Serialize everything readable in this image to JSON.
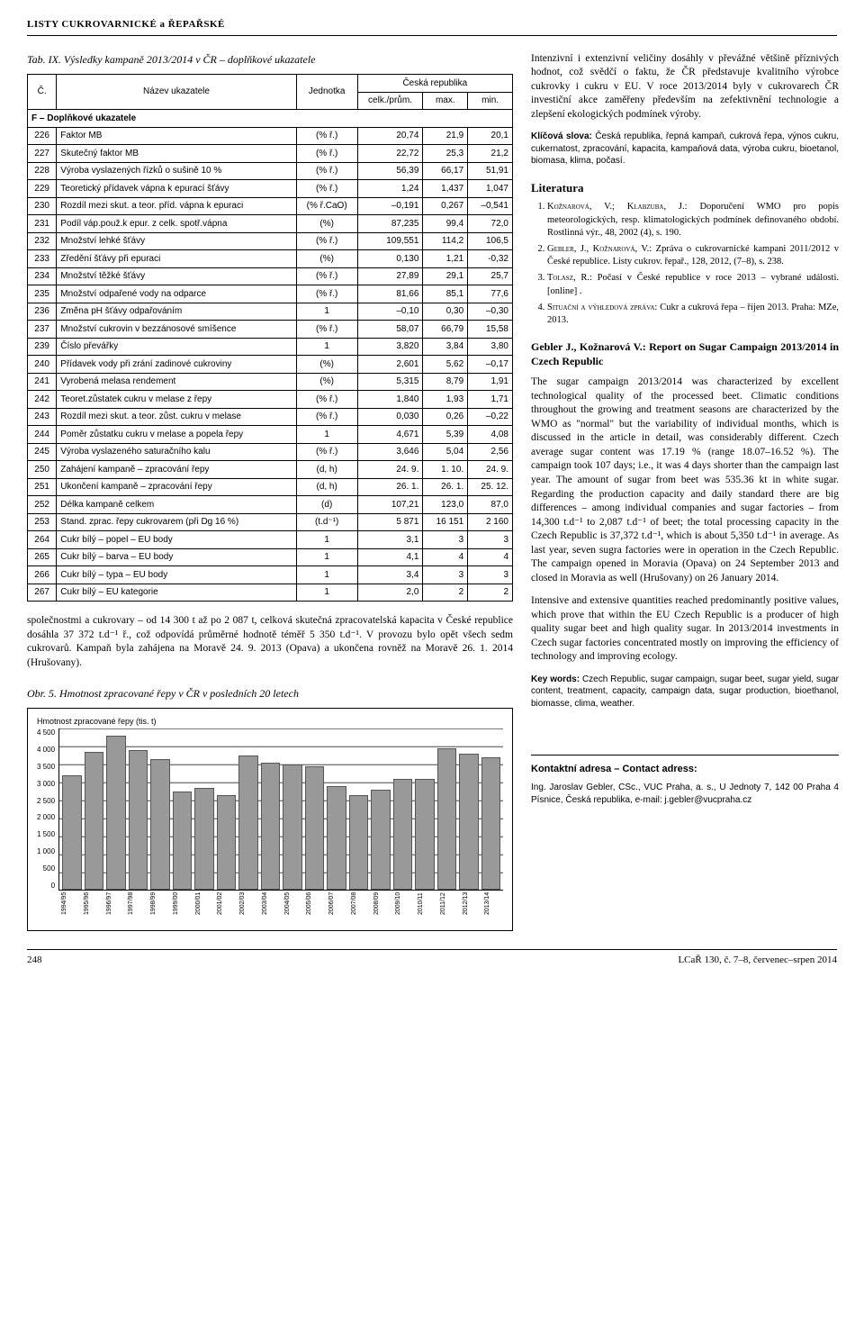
{
  "header": "LISTY CUKROVARNICKÉ a ŘEPAŘSKÉ",
  "tableCaption": "Tab. IX. Výsledky kampaně 2013/2014 v ČR – doplňkové ukazatele",
  "tableHead": {
    "c": "Č.",
    "name": "Název ukazatele",
    "unit": "Jednotka",
    "group": "Česká republika",
    "sub": [
      "celk./prům.",
      "max.",
      "min."
    ]
  },
  "sectionLabel": "F – Doplňkové ukazatele",
  "rows": [
    {
      "n": "226",
      "name": "Faktor MB",
      "u": "(% ř.)",
      "v": [
        "20,74",
        "21,9",
        "20,1"
      ]
    },
    {
      "n": "227",
      "name": "Skutečný faktor MB",
      "u": "(% ř.)",
      "v": [
        "22,72",
        "25,3",
        "21,2"
      ]
    },
    {
      "n": "228",
      "name": "Výroba vyslazených řízků o sušině 10 %",
      "u": "(% ř.)",
      "v": [
        "56,39",
        "66,17",
        "51,91"
      ]
    },
    {
      "n": "229",
      "name": "Teoretický přídavek vápna k epurací šťávy",
      "u": "(% ř.)",
      "v": [
        "1,24",
        "1,437",
        "1,047"
      ]
    },
    {
      "n": "230",
      "name": "Rozdíl mezi skut. a teor. příd. vápna k epuraci",
      "u": "(% ř.CaO)",
      "v": [
        "–0,191",
        "0,267",
        "–0,541"
      ]
    },
    {
      "n": "231",
      "name": "Podíl váp.použ.k epur. z celk. spotř.vápna",
      "u": "(%)",
      "v": [
        "87,235",
        "99,4",
        "72,0"
      ]
    },
    {
      "n": "232",
      "name": "Množství lehké šťávy",
      "u": "(% ř.)",
      "v": [
        "109,551",
        "114,2",
        "106,5"
      ]
    },
    {
      "n": "233",
      "name": "Zředění šťávy při epuraci",
      "u": "(%)",
      "v": [
        "0,130",
        "1,21",
        "-0,32"
      ]
    },
    {
      "n": "234",
      "name": "Množství těžké šťávy",
      "u": "(% ř.)",
      "v": [
        "27,89",
        "29,1",
        "25,7"
      ]
    },
    {
      "n": "235",
      "name": "Množství odpařené vody na odparce",
      "u": "(% ř.)",
      "v": [
        "81,66",
        "85,1",
        "77,6"
      ]
    },
    {
      "n": "236",
      "name": "Změna pH šťávy odpařováním",
      "u": "1",
      "v": [
        "–0,10",
        "0,30",
        "–0,30"
      ]
    },
    {
      "n": "237",
      "name": "Množství cukrovin v bezzánosové smíšence",
      "u": "(% ř.)",
      "v": [
        "58,07",
        "66,79",
        "15,58"
      ]
    },
    {
      "n": "239",
      "name": "Číslo převářky",
      "u": "1",
      "v": [
        "3,820",
        "3,84",
        "3,80"
      ]
    },
    {
      "n": "240",
      "name": "Přídavek vody při zrání zadinové cukroviny",
      "u": "(%)",
      "v": [
        "2,601",
        "5,62",
        "–0,17"
      ]
    },
    {
      "n": "241",
      "name": "Vyrobená melasa rendement",
      "u": "(%)",
      "v": [
        "5,315",
        "8,79",
        "1,91"
      ]
    },
    {
      "n": "242",
      "name": "Teoret.zůstatek cukru v melase z řepy",
      "u": "(% ř.)",
      "v": [
        "1,840",
        "1,93",
        "1,71"
      ]
    },
    {
      "n": "243",
      "name": "Rozdíl mezi skut. a teor. zůst. cukru v melase",
      "u": "(% ř.)",
      "v": [
        "0,030",
        "0,26",
        "–0,22"
      ]
    },
    {
      "n": "244",
      "name": "Poměr zůstatku cukru v melase a popela řepy",
      "u": "1",
      "v": [
        "4,671",
        "5,39",
        "4,08"
      ]
    },
    {
      "n": "245",
      "name": "Výroba vyslazeného saturačního kalu",
      "u": "(% ř.)",
      "v": [
        "3,646",
        "5,04",
        "2,56"
      ]
    },
    {
      "n": "250",
      "name": "Zahájení kampaně – zpracování řepy",
      "u": "(d, h)",
      "v": [
        "24. 9.",
        "1. 10.",
        "24. 9."
      ]
    },
    {
      "n": "251",
      "name": "Ukončení kampaně – zpracování řepy",
      "u": "(d, h)",
      "v": [
        "26. 1.",
        "26. 1.",
        "25. 12."
      ]
    },
    {
      "n": "252",
      "name": "Délka kampaně celkem",
      "u": "(d)",
      "v": [
        "107,21",
        "123,0",
        "87,0"
      ]
    },
    {
      "n": "253",
      "name": "Stand. zprac. řepy cukrovarem (při Dg 16 %)",
      "u": "(t.d⁻¹)",
      "v": [
        "5 871",
        "16 151",
        "2 160"
      ]
    },
    {
      "n": "264",
      "name": "Cukr bílý – popel – EU body",
      "u": "1",
      "v": [
        "3,1",
        "3",
        "3"
      ]
    },
    {
      "n": "265",
      "name": "Cukr bílý – barva – EU body",
      "u": "1",
      "v": [
        "4,1",
        "4",
        "4"
      ]
    },
    {
      "n": "266",
      "name": "Cukr bílý – typa – EU body",
      "u": "1",
      "v": [
        "3,4",
        "3",
        "3"
      ]
    },
    {
      "n": "267",
      "name": "Cukr bílý – EU kategorie",
      "u": "1",
      "v": [
        "2,0",
        "2",
        "2"
      ]
    }
  ],
  "belowTable": "společnostmi a cukrovary – od 14 300 t až po 2 087 t, celková skutečná zpracovatelská kapacita v České republice dosáhla 37 372 t.d⁻¹ ř., což odpovídá průměrné hodnotě téměř 5 350 t.d⁻¹. V provozu bylo opět všech sedm cukrovarů. Kampaň byla zahájena na Moravě 24. 9. 2013 (Opava) a ukončena rovněž na Moravě 26. 1. 2014 (Hrušovany).",
  "chartCaption": "Obr. 5. Hmotnost zpracované řepy v ČR v posledních 20 letech",
  "chart": {
    "ylabel": "Hmotnost zpracované řepy (tis. t)",
    "ymax": 4500,
    "ytick": 500,
    "ylabels": [
      "4 500",
      "4 000",
      "3 500",
      "3 000",
      "2 500",
      "2 000",
      "1 500",
      "1 000",
      "500",
      "0"
    ],
    "years": [
      "1994/95",
      "1995/96",
      "1996/97",
      "1997/98",
      "1998/99",
      "1999/00",
      "2000/01",
      "2001/02",
      "2002/03",
      "2003/04",
      "2004/05",
      "2005/06",
      "2006/07",
      "2007/08",
      "2008/09",
      "2009/10",
      "2010/11",
      "2011/12",
      "2012/13",
      "2013/14"
    ],
    "values": [
      3200,
      3850,
      4300,
      3900,
      3650,
      2750,
      2850,
      2650,
      3750,
      3550,
      3500,
      3450,
      2900,
      2650,
      2800,
      3100,
      3100,
      3950,
      3800,
      3700
    ],
    "barColor": "#999999",
    "gridColor": "#cccccc"
  },
  "intro": "Intenzivní i extenzivní veličiny dosáhly v převážné většině příznivých hodnot, což svědčí o faktu, že ČR představuje kvalitního výrobce cukrovky i cukru v EU. V roce 2013/2014 byly v cukrovarech ČR investiční akce zaměřeny především na zefektivnění technologie a zlepšení ekologických podmínek výroby.",
  "klicovaLabel": "Klíčová slova:",
  "klicova": "Česká republika, řepná kampaň, cukrová řepa, výnos cukru, cukernatost, zpracování, kapacita, kampaňová data, výroba cukru, bioetanol, biomasa, klima, počasí.",
  "litTitle": "Literatura",
  "refs": [
    "Kožnarová, V.; Klabzuba, J.: Doporučení WMO pro popis meteorologických, resp. klimatologických podmínek definovaného období. Rostlinná výr., 48, 2002 (4), s. 190.",
    "Gebler, J., Kožnarová, V.: Zpráva o cukrovarnické kampani 2011/2012 v České republice. Listy cukrov. řepař., 128, 2012, (7–8), s. 238.",
    "Tolasz, R.: Počasí v České republice v roce 2013 – vybrané události. [online] <http://www.infomet.cz/index.php?id=read&idd=1389793491&a0=počasí&a1=v&a2=březnu&vyrazu=3&oznacit=ano>.",
    "Situační a výhledová zpráva: Cukr a cukrová řepa – říjen 2013. Praha: MZe, 2013."
  ],
  "engTitle": "Gebler J., Kožnarová V.: Report on Sugar Campaign 2013/2014 in Czech Republic",
  "engBody1": "The sugar campaign 2013/2014 was characterized by excellent technological quality of the processed beet. Climatic conditions throughout the growing and treatment seasons are characterized by the WMO as \"normal\" but the variability of individual months, which is discussed in the article in detail, was considerably different. Czech average sugar content was 17.19 % (range 18.07–16.52 %). The campaign took 107 days; i.e., it was 4 days shorter than the campaign last year. The amount of sugar from beet was 535.36 kt in white sugar. Regarding the production capacity and daily standard there are big differences – among individual companies and sugar factories – from 14,300 t.d⁻¹ to 2,087 t.d⁻¹ of beet; the total processing capacity in the Czech Republic is 37,372 t.d⁻¹, which is about 5,350 t.d⁻¹ in average. As last year, seven sugra factories were in operation in the Czech Republic. The campaign opened in Moravia (Opava) on 24 September 2013 and closed in Moravia as well (Hrušovany) on 26 January 2014.",
  "engBody2": "Intensive and extensive quantities reached predominantly positive values, which prove that within the EU Czech Republic is a producer of high quality sugar beet and high quality sugar. In 2013/2014 investments in Czech sugar factories concentrated mostly on improving the efficiency of technology and improving ecology.",
  "keywordsLabel": "Key words:",
  "keywords": "Czech Republic, sugar campaign, sugar beet, sugar yield, sugar content, treatment, capacity, campaign data, sugar production, bioethanol, biomasse, clima, weather.",
  "contactHdr": "Kontaktní adresa – Contact adress:",
  "contactBody": "Ing. Jaroslav Gebler, CSc., VUC Praha, a. s., U Jednoty 7, 142 00 Praha 4 Písnice, Česká republika, e-mail: j.gebler@vucpraha.cz",
  "footer": {
    "page": "248",
    "right": "LCaŘ 130, č. 7–8, červenec–srpen 2014"
  }
}
